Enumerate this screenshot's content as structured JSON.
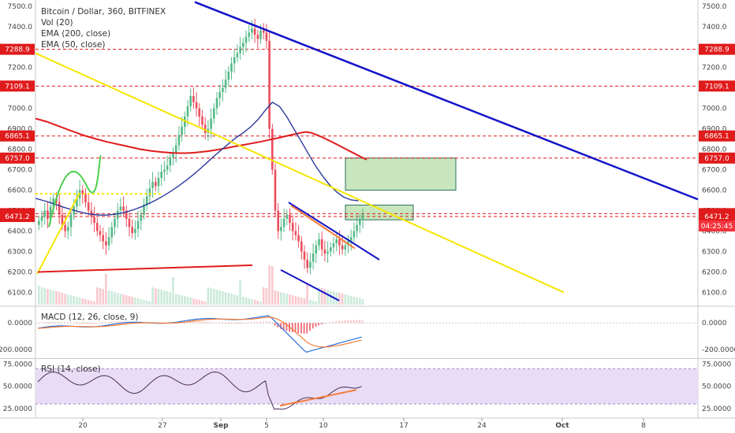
{
  "legend": {
    "title": "Bitcoin / Dollar, 360, BITFINEX",
    "vol": "Vol (20)",
    "ema200": "EMA (200, close)",
    "ema50": "EMA (50, close)"
  },
  "macd_label": "MACD (12, 26, close, 9)",
  "rsi_label": "RSI (14, close)",
  "colors": {
    "up": "#53b987",
    "down": "#eb4d5c",
    "ema200": "#e01b1b",
    "ema50": "#2c3a9c",
    "trend_yellow": "#f5e500",
    "trend_blue": "#1414c8",
    "trend_red": "#e01b1b",
    "hline": "#e01b1b",
    "zone": "#a9d89b",
    "rsi_band": "#e9dcf6",
    "rsi_line": "#4a2f55",
    "macd_line": "#2a6fd6",
    "signal_line": "#f47b35"
  },
  "chart_data": [
    {
      "type": "candlestick",
      "title": "Bitcoin / Dollar, 360, BITFINEX",
      "x_ticks": [
        "20",
        "27",
        "Sep",
        "5",
        "10",
        "17",
        "24",
        "Oct",
        "8"
      ],
      "y_ticks": [
        6100,
        6200,
        6300,
        6400,
        6500,
        6600,
        6700,
        6800,
        6900,
        7000,
        7100,
        7200,
        7300,
        7400,
        7500
      ],
      "y_tick_labels": [
        "6100.0",
        "6200.0",
        "6300.0",
        "6400.0",
        "6500.0",
        "6600.0",
        "6700.0",
        "6800.0",
        "6900.0",
        "7000.0",
        "7100.0",
        "7200.0",
        "7300.0",
        "7400.0",
        "7500.0"
      ],
      "ylim": [
        6040,
        7530
      ],
      "price_badges": [
        {
          "text": "7288.9",
          "value": 7288.9
        },
        {
          "text": "7109.1",
          "value": 7109.1
        },
        {
          "text": "6865.1",
          "value": 6865.1
        },
        {
          "text": "6757.0",
          "value": 6757.0
        },
        {
          "text": "6485.2",
          "value": 6485.2
        },
        {
          "text": "6471.2",
          "value": 6471.2
        },
        {
          "text": "04:25:45",
          "value": 6425
        }
      ],
      "horizontal_lines": [
        7288.9,
        7109.1,
        6865.1,
        6757.0,
        6485.2,
        6471.2
      ],
      "series": [
        {
          "name": "Vol (20)"
        },
        {
          "name": "EMA (200, close)"
        },
        {
          "name": "EMA (50, close)"
        }
      ],
      "candles_close": [
        6450,
        6470,
        6500,
        6460,
        6520,
        6560,
        6540,
        6480,
        6430,
        6400,
        6420,
        6480,
        6520,
        6560,
        6600,
        6580,
        6540,
        6500,
        6470,
        6440,
        6400,
        6380,
        6350,
        6330,
        6370,
        6420,
        6460,
        6500,
        6520,
        6500,
        6460,
        6420,
        6390,
        6410,
        6450,
        6480,
        6530,
        6570,
        6610,
        6640,
        6620,
        6660,
        6690,
        6700,
        6720,
        6760,
        6780,
        6820,
        6870,
        6910,
        6960,
        7010,
        7060,
        7030,
        7000,
        6960,
        6920,
        6880,
        6900,
        6950,
        7000,
        7050,
        7080,
        7100,
        7140,
        7180,
        7220,
        7250,
        7270,
        7300,
        7320,
        7350,
        7370,
        7390,
        7360,
        7340,
        7380,
        7370,
        7330,
        6900,
        6700,
        6500,
        6400,
        6420,
        6460,
        6480,
        6440,
        6400,
        6380,
        6350,
        6300,
        6260,
        6220,
        6250,
        6290,
        6330,
        6360,
        6310,
        6290,
        6300,
        6320,
        6340,
        6360,
        6330,
        6310,
        6330,
        6350,
        6370,
        6400,
        6430,
        6460,
        6480
      ],
      "ema200": [
        6950,
        6943,
        6935,
        6925,
        6915,
        6905,
        6895,
        6885,
        6875,
        6866,
        6858,
        6850,
        6843,
        6836,
        6830,
        6824,
        6818,
        6812,
        6806,
        6800,
        6796,
        6792,
        6789,
        6786,
        6784,
        6782,
        6781,
        6781,
        6782,
        6784,
        6787,
        6790,
        6794,
        6798,
        6803,
        6808,
        6813,
        6818,
        6823,
        6828,
        6833,
        6838,
        6844,
        6850,
        6856,
        6862,
        6868,
        6874,
        6880,
        6885,
        6880,
        6870,
        6858,
        6845,
        6832,
        6818,
        6804,
        6790,
        6776,
        6762,
        6749
      ],
      "ema50": [
        6560,
        6550,
        6540,
        6528,
        6516,
        6505,
        6495,
        6487,
        6481,
        6478,
        6478,
        6482,
        6488,
        6497,
        6508,
        6522,
        6538,
        6556,
        6576,
        6598,
        6622,
        6648,
        6676,
        6706,
        6738,
        6770,
        6800,
        6830,
        6858,
        6882,
        6910,
        6945,
        6990,
        7030,
        7010,
        6960,
        6900,
        6840,
        6780,
        6720,
        6670,
        6625,
        6590,
        6565,
        6552,
        6548
      ]
    },
    {
      "type": "line",
      "title": "MACD (12, 26, close, 9)",
      "y_tick_labels": [
        "0.0000",
        "-200.0000"
      ],
      "y_ticks": [
        0,
        -200
      ],
      "ylim": [
        -260,
        120
      ]
    },
    {
      "type": "line",
      "title": "RSI (14, close)",
      "y_tick_labels": [
        "75.0000",
        "50.0000",
        "25.0000"
      ],
      "y_ticks": [
        75,
        50,
        25
      ],
      "ylim": [
        15,
        80
      ],
      "band": [
        30,
        70
      ]
    }
  ]
}
